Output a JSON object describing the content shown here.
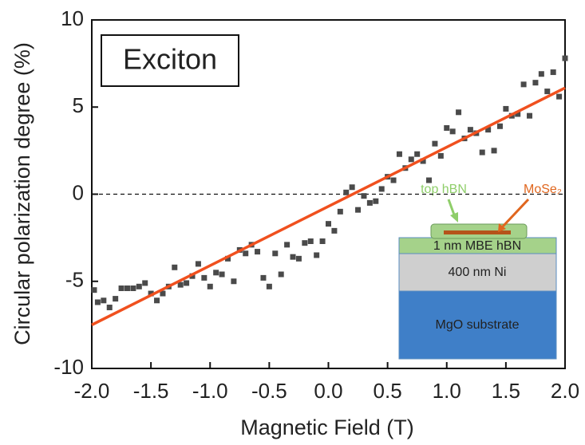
{
  "chart_data": {
    "type": "scatter",
    "xlabel": "Magnetic Field (T)",
    "ylabel": "Circular polarization degree (%)",
    "xlim": [
      -2.0,
      2.0
    ],
    "xticks": [
      {
        "value": -2.0,
        "label": "-2.0"
      },
      {
        "value": -1.5,
        "label": "-1.5"
      },
      {
        "value": -1.0,
        "label": "-1.0"
      },
      {
        "value": -0.5,
        "label": "-0.5"
      },
      {
        "value": 0.0,
        "label": "0.0"
      },
      {
        "value": 0.5,
        "label": "0.5"
      },
      {
        "value": 1.0,
        "label": "1.0"
      },
      {
        "value": 1.5,
        "label": "1.5"
      },
      {
        "value": 2.0,
        "label": "2.0"
      }
    ],
    "ylim": [
      -10,
      10
    ],
    "yticks": [
      -10,
      -5,
      0,
      5,
      10
    ],
    "reference_line": {
      "y": 0,
      "style": "dashed"
    },
    "series": [
      {
        "kind": "scatter",
        "color": "#4a4a4a",
        "x": [
          -1.98,
          -1.95,
          -1.9,
          -1.85,
          -1.8,
          -1.75,
          -1.7,
          -1.65,
          -1.6,
          -1.55,
          -1.5,
          -1.45,
          -1.4,
          -1.35,
          -1.3,
          -1.25,
          -1.2,
          -1.15,
          -1.1,
          -1.05,
          -1.0,
          -0.95,
          -0.9,
          -0.85,
          -0.8,
          -0.75,
          -0.7,
          -0.65,
          -0.6,
          -0.55,
          -0.5,
          -0.45,
          -0.4,
          -0.35,
          -0.3,
          -0.25,
          -0.2,
          -0.15,
          -0.1,
          -0.05,
          0.0,
          0.05,
          0.1,
          0.15,
          0.2,
          0.25,
          0.3,
          0.35,
          0.4,
          0.45,
          0.5,
          0.55,
          0.6,
          0.65,
          0.7,
          0.75,
          0.8,
          0.85,
          0.9,
          0.95,
          1.0,
          1.05,
          1.1,
          1.15,
          1.2,
          1.25,
          1.3,
          1.35,
          1.4,
          1.45,
          1.5,
          1.55,
          1.6,
          1.65,
          1.7,
          1.75,
          1.8,
          1.85,
          1.9,
          1.95,
          2.0
        ],
        "values": [
          -5.5,
          -6.2,
          -6.1,
          -6.5,
          -6.0,
          -5.4,
          -5.4,
          -5.4,
          -5.3,
          -5.1,
          -5.7,
          -6.1,
          -5.7,
          -5.3,
          -4.2,
          -5.2,
          -5.1,
          -4.7,
          -4.0,
          -4.8,
          -5.3,
          -4.5,
          -4.6,
          -3.7,
          -5.0,
          -3.2,
          -3.4,
          -2.9,
          -3.3,
          -4.8,
          -5.3,
          -3.4,
          -4.6,
          -2.9,
          -3.6,
          -3.7,
          -2.8,
          -2.7,
          -3.5,
          -2.7,
          -1.7,
          -2.1,
          -1.0,
          0.1,
          0.4,
          -0.9,
          -0.1,
          -0.5,
          -0.4,
          0.3,
          1.0,
          0.8,
          2.3,
          1.5,
          2.0,
          2.3,
          1.9,
          0.8,
          2.9,
          2.2,
          3.8,
          3.6,
          4.7,
          3.2,
          3.7,
          3.5,
          2.4,
          3.7,
          2.5,
          3.9,
          4.9,
          4.5,
          4.6,
          6.3,
          4.5,
          6.4,
          6.9,
          5.9,
          7.0,
          5.6,
          7.8
        ]
      },
      {
        "kind": "line",
        "color": "#f0501e",
        "x": [
          -2.0,
          2.0
        ],
        "values": [
          -7.5,
          6.1
        ]
      }
    ],
    "annotations": {
      "label": "Exciton",
      "top_hbn": "top hBN",
      "mose2": "MoSe₂",
      "mbe_hbn": "1 nm MBE hBN",
      "ni": "400 nm Ni",
      "substrate": "MgO substrate"
    }
  }
}
